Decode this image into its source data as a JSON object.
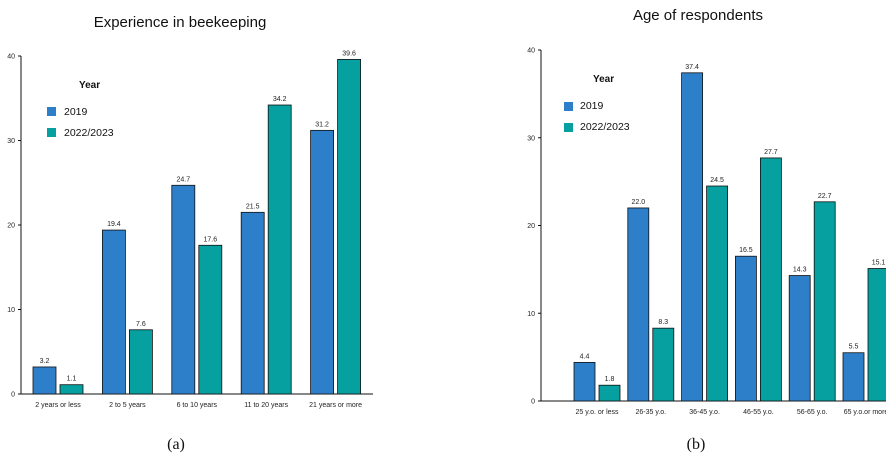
{
  "colors": {
    "series_2019": "#2d7fc9",
    "series_2022": "#06a0a0"
  },
  "chart_data": [
    {
      "type": "bar",
      "title": "Experience in beekeeping",
      "caption": "(a)",
      "categories": [
        "2 years or less",
        "2 to 5 years",
        "6 to 10 years",
        "11 to 20 years",
        "21 years or more"
      ],
      "series": [
        {
          "name": "2019",
          "values": [
            3.2,
            19.4,
            24.7,
            21.5,
            31.2
          ]
        },
        {
          "name": "2022/2023",
          "values": [
            1.1,
            7.6,
            17.6,
            34.2,
            39.6
          ]
        }
      ],
      "value_labels": [
        [
          "3.2",
          "19.4",
          "24.7",
          "21.5",
          "31.2"
        ],
        [
          "1.1",
          "7.6",
          "17.6",
          "34.2",
          "39.6"
        ]
      ],
      "legend_title": "Year",
      "legend_position": "top-left",
      "ylim": [
        0,
        40
      ],
      "yticks": [
        0,
        10,
        20,
        30,
        40
      ],
      "ytick_labels": [
        "0",
        "10",
        "20",
        "30",
        "40"
      ],
      "xlabel": "",
      "ylabel": "",
      "grid": false
    },
    {
      "type": "bar",
      "title": "Age of respondents",
      "caption": "(b)",
      "categories": [
        "25 y.o. or less",
        "26-35 y.o.",
        "36-45 y.o.",
        "46-55 y.o.",
        "56-65 y.o.",
        "65 y.o.or more"
      ],
      "series": [
        {
          "name": "2019",
          "values": [
            4.4,
            22.0,
            37.4,
            16.5,
            14.3,
            5.5
          ]
        },
        {
          "name": "2022/2023",
          "values": [
            1.8,
            8.3,
            24.5,
            27.7,
            22.7,
            15.1
          ]
        }
      ],
      "value_labels": [
        [
          "4.4",
          "22.0",
          "37.4",
          "16.5",
          "14.3",
          "5.5"
        ],
        [
          "1.8",
          "8.3",
          "24.5",
          "27.7",
          "22.7",
          "15.1"
        ]
      ],
      "legend_title": "Year",
      "legend_position": "top-left",
      "ylim": [
        0,
        40
      ],
      "yticks": [
        0,
        10,
        20,
        30,
        40
      ],
      "ytick_labels": [
        "0",
        "10",
        "20",
        "30",
        "40"
      ],
      "xlabel": "",
      "ylabel": "",
      "grid": false
    }
  ]
}
